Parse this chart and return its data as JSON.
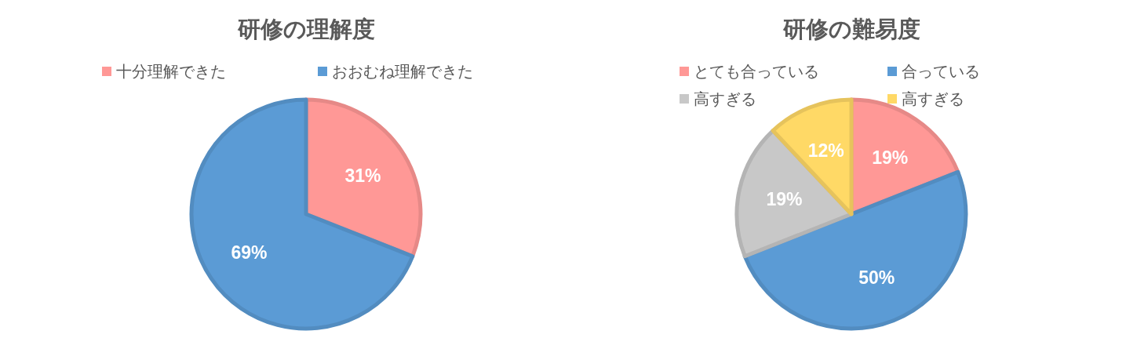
{
  "chart_data": [
    {
      "type": "pie",
      "title": "研修の理解度",
      "legend": "top",
      "categories": [
        "十分理解できた",
        "おおむね理解できた"
      ],
      "values": [
        31,
        69
      ],
      "colors": [
        "#ff9896",
        "#5b9bd5"
      ],
      "value_labels": [
        "31%",
        "69%"
      ]
    },
    {
      "type": "pie",
      "title": "研修の難易度",
      "legend": "top",
      "categories": [
        "とても合っている",
        "合っている",
        "高すぎる",
        "高すぎる"
      ],
      "values": [
        19,
        50,
        19,
        12
      ],
      "colors": [
        "#ff9896",
        "#5b9bd5",
        "#c8c8c8",
        "#ffd966"
      ],
      "value_labels": [
        "19%",
        "50%",
        "19%",
        "12%"
      ]
    }
  ]
}
